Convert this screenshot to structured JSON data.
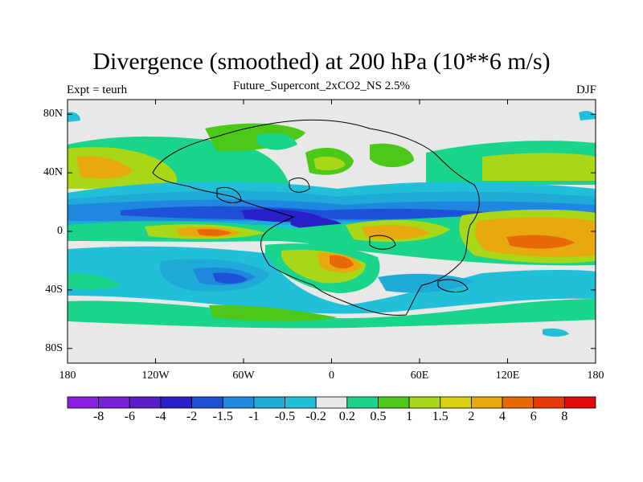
{
  "header": {
    "title": "Divergence (smoothed) at 200 hPa (10**6 m/s)",
    "subtitle": "Future_Supercont_2xCO2_NS 2.5%",
    "left_label": "Expt = teurh",
    "right_label": "DJF"
  },
  "axes": {
    "lat_ticks": [
      {
        "value": 80,
        "label": "80N"
      },
      {
        "value": 40,
        "label": "40N"
      },
      {
        "value": 0,
        "label": "0"
      },
      {
        "value": -40,
        "label": "40S"
      },
      {
        "value": -80,
        "label": "80S"
      }
    ],
    "lon_ticks": [
      {
        "value": -180,
        "label": "180"
      },
      {
        "value": -120,
        "label": "120W"
      },
      {
        "value": -60,
        "label": "60W"
      },
      {
        "value": 0,
        "label": "0"
      },
      {
        "value": 60,
        "label": "60E"
      },
      {
        "value": 120,
        "label": "120E"
      },
      {
        "value": 180,
        "label": "180"
      }
    ]
  },
  "colorbar": {
    "colors": [
      "#8b1fe0",
      "#7a1fd8",
      "#5a1ec8",
      "#2a20c8",
      "#1f50d8",
      "#1f88de",
      "#1faad8",
      "#22c0d8",
      "#e8e8e8",
      "#19d48a",
      "#4cc818",
      "#a8d818",
      "#d8d010",
      "#e8a810",
      "#e86808",
      "#e83a08",
      "#e00808"
    ],
    "labels": [
      "-8",
      "-6",
      "-4",
      "-2",
      "-1.5",
      "-1",
      "-0.5",
      "-0.2",
      "0.2",
      "0.5",
      "1",
      "1.5",
      "2",
      "4",
      "6",
      "8"
    ]
  }
}
